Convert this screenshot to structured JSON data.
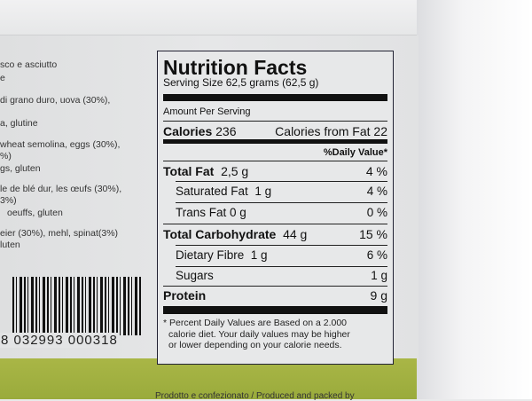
{
  "ingredients": [
    "sco e asciutto",
    "e",
    "di grano duro, uova (30%),",
    "a, glutine",
    "wheat semolina, eggs (30%),",
    "%)",
    "gs, gluten",
    "le de blé dur, les œufs (30%),",
    "3%)",
    "oeuffs, gluten",
    "eier (30%), mehl, spinat(3%)",
    "luten"
  ],
  "barcode": {
    "number": "8 032993 000318"
  },
  "nutrition": {
    "title": "Nutrition Facts",
    "serving": "Serving Size 62,5 grams (62,5 g)",
    "amount_per": "Amount Per Serving",
    "calories_label": "Calories",
    "calories": "236",
    "cal_fat_label": "Calories from Fat",
    "cal_fat": "22",
    "dv_header": "%Daily Value*",
    "rows": [
      {
        "label": "Total Fat",
        "amount": "2,5 g",
        "dv": "4 %"
      },
      {
        "label": "Saturated Fat",
        "amount": "1 g",
        "dv": "4 %"
      },
      {
        "label": "Trans Fat",
        "amount": "0 g",
        "dv": "0 %"
      },
      {
        "label": "Total Carbohydrate",
        "amount": "44 g",
        "dv": "15 %"
      },
      {
        "label": "Dietary Fibre",
        "amount": "1 g",
        "dv": "6 %"
      },
      {
        "label": "Sugars",
        "amount": "",
        "dv": "1 g"
      },
      {
        "label": "Protein",
        "amount": "",
        "dv": "9 g"
      }
    ],
    "footnote": [
      "* Percent Daily Values are Based on a 2.000",
      "calorie diet. Your daily values may be higher",
      "or lower depending on your calorie needs."
    ]
  },
  "bottom_text": "Prodotto e confezionato / Produced and packed by"
}
